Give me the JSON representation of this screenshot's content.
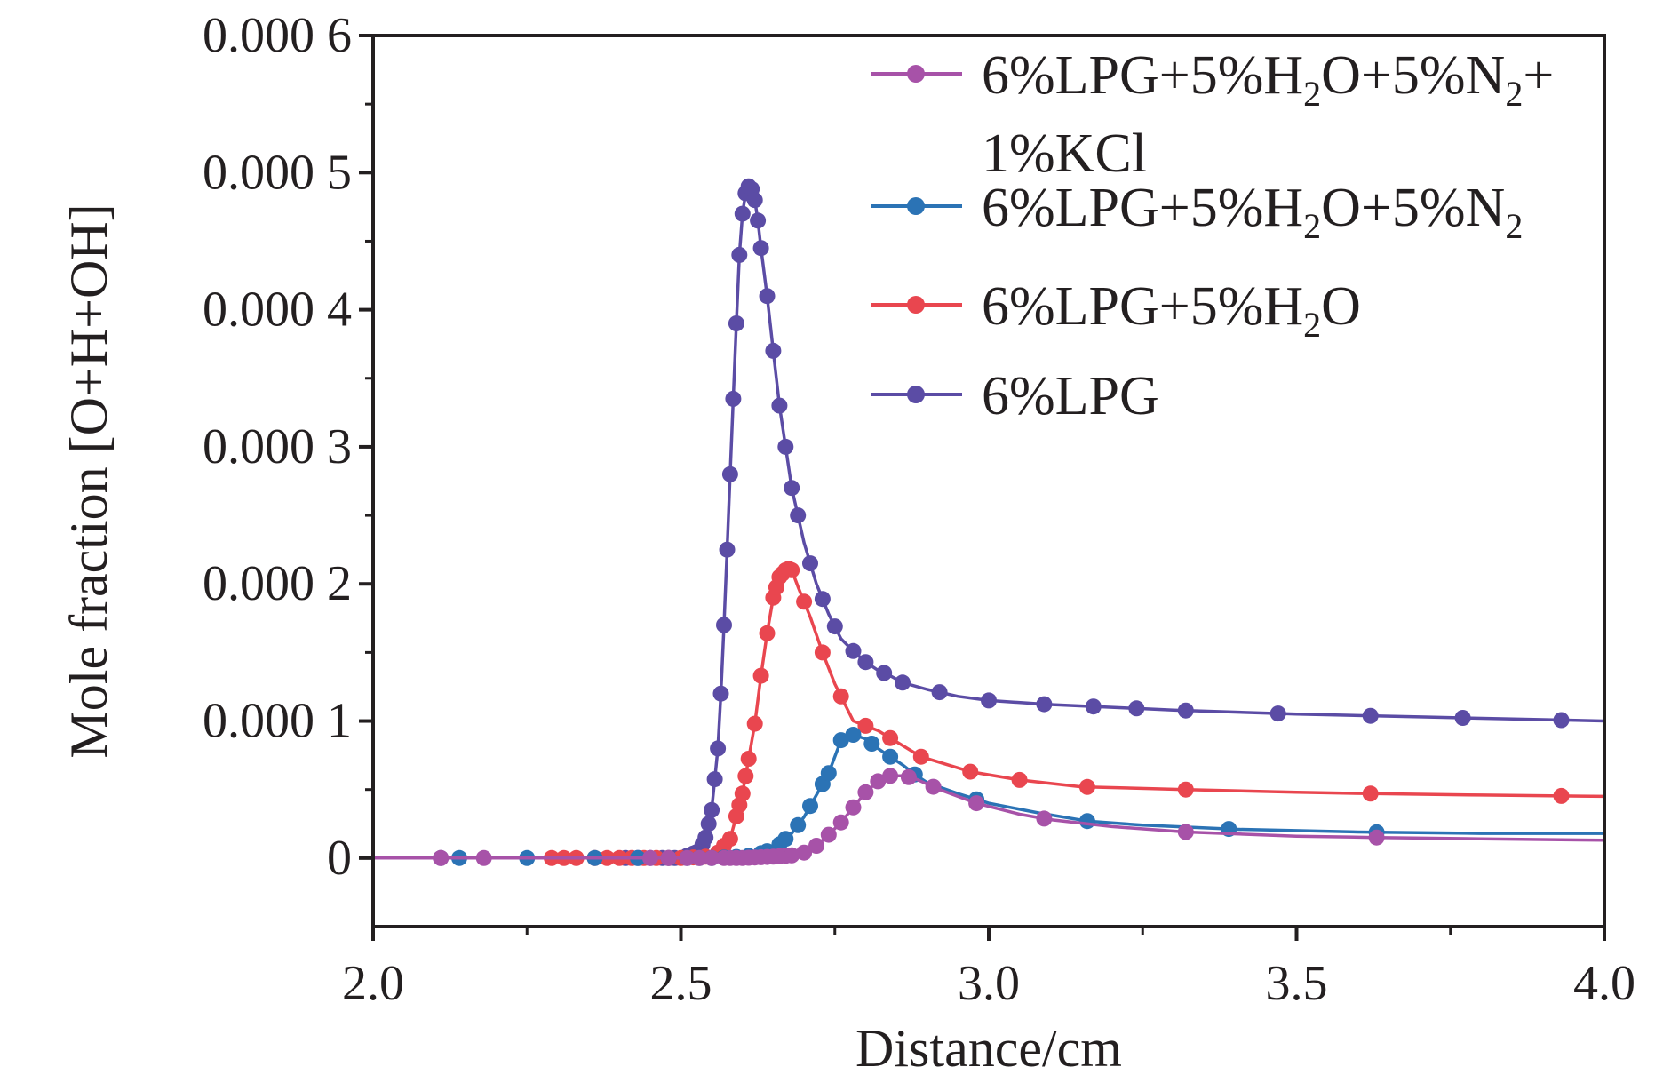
{
  "chart_data": {
    "type": "line",
    "xlabel": "Distance/cm",
    "ylabel": "Mole fraction [O+H+OH]",
    "xlim": [
      2.0,
      4.0
    ],
    "ylim": [
      -5e-05,
      0.0006
    ],
    "x_ticks": [
      2.0,
      2.5,
      3.0,
      3.5,
      4.0
    ],
    "x_tick_labels": [
      "2.0",
      "2.5",
      "3.0",
      "3.5",
      "4.0"
    ],
    "y_ticks": [
      0,
      0.0001,
      0.0002,
      0.0003,
      0.0004,
      0.0005,
      0.0006
    ],
    "y_tick_labels": [
      "0",
      "0.000 1",
      "0.000 2",
      "0.000 3",
      "0.000 4",
      "0.000 5",
      "0.000 6"
    ],
    "legend_position": "top-right",
    "legend": [
      {
        "series": 0,
        "lines": [
          [
            {
              "t": "6%LPG+5%H"
            },
            {
              "t": "2",
              "sub": true
            },
            {
              "t": "O+5%N"
            },
            {
              "t": "2",
              "sub": true
            },
            {
              "t": "+"
            }
          ],
          [
            {
              "t": "1%KCl"
            }
          ]
        ]
      },
      {
        "series": 1,
        "lines": [
          [
            {
              "t": "6%LPG+5%H"
            },
            {
              "t": "2",
              "sub": true
            },
            {
              "t": "O+5%N"
            },
            {
              "t": "2",
              "sub": true
            }
          ]
        ]
      },
      {
        "series": 2,
        "lines": [
          [
            {
              "t": "6%LPG+5%H"
            },
            {
              "t": "2",
              "sub": true
            },
            {
              "t": "O"
            }
          ]
        ]
      },
      {
        "series": 3,
        "lines": [
          [
            {
              "t": "6%LPG"
            }
          ]
        ]
      }
    ],
    "series": [
      {
        "name": "6%LPG+5%H2O+5%N2+1%KCl",
        "color": "#a752a8",
        "x": [
          2.0,
          2.1,
          2.18,
          2.3,
          2.4,
          2.45,
          2.5,
          2.55,
          2.6,
          2.65,
          2.68,
          2.7,
          2.72,
          2.74,
          2.76,
          2.78,
          2.8,
          2.82,
          2.84,
          2.86,
          2.88,
          2.92,
          2.98,
          3.05,
          3.1,
          3.2,
          3.32,
          3.5,
          3.63,
          3.8,
          4.0
        ],
        "y": [
          0,
          0,
          0,
          0,
          0,
          0,
          0,
          0,
          0,
          1e-06,
          2e-06,
          4e-06,
          9e-06,
          1.7e-05,
          2.6e-05,
          3.7e-05,
          4.8e-05,
          5.6e-05,
          6e-05,
          6e-05,
          5.8e-05,
          5e-05,
          4e-05,
          3.2e-05,
          2.8e-05,
          2.3e-05,
          1.9e-05,
          1.6e-05,
          1.5e-05,
          1.4e-05,
          1.3e-05
        ],
        "markers_x": [
          2.11,
          2.18,
          2.45,
          2.48,
          2.51,
          2.53,
          2.55,
          2.57,
          2.58,
          2.59,
          2.6,
          2.61,
          2.62,
          2.63,
          2.64,
          2.65,
          2.66,
          2.67,
          2.68,
          2.7,
          2.72,
          2.74,
          2.76,
          2.78,
          2.8,
          2.82,
          2.84,
          2.87,
          2.91,
          2.98,
          3.09,
          3.32,
          3.63
        ]
      },
      {
        "name": "6%LPG+5%H2O+5%N2",
        "color": "#2b73b5",
        "x": [
          2.0,
          2.1,
          2.2,
          2.3,
          2.4,
          2.5,
          2.55,
          2.6,
          2.62,
          2.64,
          2.66,
          2.68,
          2.7,
          2.72,
          2.74,
          2.76,
          2.78,
          2.8,
          2.82,
          2.84,
          2.86,
          2.88,
          2.9,
          2.95,
          3.0,
          3.08,
          3.16,
          3.25,
          3.4,
          3.6,
          3.8,
          4.0
        ],
        "y": [
          0,
          0,
          0,
          0,
          0,
          0,
          0,
          1e-06,
          2e-06,
          5e-06,
          1e-05,
          1.8e-05,
          3e-05,
          4.6e-05,
          6.2e-05,
          8.6e-05,
          9e-05,
          8.7e-05,
          8e-05,
          7.4e-05,
          6.8e-05,
          6.1e-05,
          5.5e-05,
          4.7e-05,
          4e-05,
          3.3e-05,
          2.7e-05,
          2.4e-05,
          2.1e-05,
          1.9e-05,
          1.8e-05,
          1.8e-05
        ],
        "markers_x": [
          2.14,
          2.25,
          2.36,
          2.43,
          2.48,
          2.51,
          2.53,
          2.55,
          2.57,
          2.59,
          2.61,
          2.63,
          2.64,
          2.66,
          2.67,
          2.69,
          2.71,
          2.73,
          2.74,
          2.76,
          2.78,
          2.81,
          2.84,
          2.88,
          2.98,
          3.16,
          3.39,
          3.63
        ]
      },
      {
        "name": "6%LPG+5%H2O",
        "color": "#e9464f",
        "x": [
          2.0,
          2.1,
          2.2,
          2.3,
          2.4,
          2.5,
          2.54,
          2.56,
          2.58,
          2.6,
          2.62,
          2.63,
          2.64,
          2.65,
          2.66,
          2.67,
          2.675,
          2.68,
          2.69,
          2.71,
          2.73,
          2.75,
          2.78,
          2.82,
          2.89,
          2.97,
          3.05,
          3.15,
          3.32,
          3.5,
          3.62,
          3.8,
          4.0
        ],
        "y": [
          0,
          0,
          0,
          0,
          0,
          0,
          1e-06,
          4e-06,
          1.4e-05,
          4.7e-05,
          9.8e-05,
          0.000133,
          0.000164,
          0.00019,
          0.000205,
          0.00021,
          0.000211,
          0.00021,
          0.000198,
          0.000176,
          0.00015,
          0.000127,
          0.0001,
          9.3e-05,
          7.4e-05,
          6.3e-05,
          5.7e-05,
          5.2e-05,
          5e-05,
          4.8e-05,
          4.7e-05,
          4.6e-05,
          4.5e-05
        ],
        "markers_x": [
          2.29,
          2.31,
          2.33,
          2.36,
          2.38,
          2.4,
          2.42,
          2.44,
          2.46,
          2.48,
          2.5,
          2.52,
          2.54,
          2.56,
          2.57,
          2.58,
          2.59,
          2.595,
          2.6,
          2.605,
          2.61,
          2.62,
          2.63,
          2.64,
          2.65,
          2.655,
          2.66,
          2.665,
          2.67,
          2.675,
          2.68,
          2.7,
          2.73,
          2.76,
          2.8,
          2.84,
          2.89,
          2.97,
          3.05,
          3.16,
          3.32,
          3.62,
          3.93
        ]
      },
      {
        "name": "6%LPG",
        "color": "#5b4ca5",
        "x": [
          2.0,
          2.1,
          2.2,
          2.3,
          2.4,
          2.5,
          2.53,
          2.54,
          2.55,
          2.56,
          2.565,
          2.57,
          2.575,
          2.58,
          2.585,
          2.59,
          2.595,
          2.6,
          2.605,
          2.61,
          2.615,
          2.62,
          2.625,
          2.63,
          2.64,
          2.65,
          2.66,
          2.67,
          2.68,
          2.7,
          2.72,
          2.74,
          2.76,
          2.78,
          2.8,
          2.82,
          2.84,
          2.86,
          2.9,
          2.95,
          3.0,
          3.1,
          3.2,
          3.3,
          3.5,
          3.7,
          4.0
        ],
        "y": [
          0,
          0,
          0,
          0,
          0,
          0,
          5e-06,
          1.5e-05,
          3.5e-05,
          8e-05,
          0.00012,
          0.00017,
          0.000225,
          0.00028,
          0.000335,
          0.00039,
          0.00044,
          0.00047,
          0.000485,
          0.00049,
          0.000488,
          0.00048,
          0.000465,
          0.000445,
          0.00041,
          0.00037,
          0.00033,
          0.0003,
          0.00027,
          0.00023,
          0.0002,
          0.000178,
          0.00016,
          0.000151,
          0.000143,
          0.000137,
          0.000133,
          0.000128,
          0.000123,
          0.000118,
          0.000115,
          0.000112,
          0.00011,
          0.000108,
          0.000105,
          0.000103,
          0.0001
        ],
        "markers_x": [
          2.11,
          2.41,
          2.43,
          2.45,
          2.47,
          2.49,
          2.51,
          2.52,
          2.525,
          2.53,
          2.535,
          2.54,
          2.545,
          2.55,
          2.555,
          2.56,
          2.565,
          2.57,
          2.575,
          2.58,
          2.585,
          2.59,
          2.595,
          2.6,
          2.605,
          2.61,
          2.615,
          2.62,
          2.625,
          2.63,
          2.64,
          2.65,
          2.66,
          2.67,
          2.68,
          2.69,
          2.71,
          2.73,
          2.75,
          2.78,
          2.8,
          2.83,
          2.86,
          2.92,
          3.0,
          3.09,
          3.17,
          3.24,
          3.32,
          3.47,
          3.62,
          3.77,
          3.93
        ]
      }
    ]
  }
}
